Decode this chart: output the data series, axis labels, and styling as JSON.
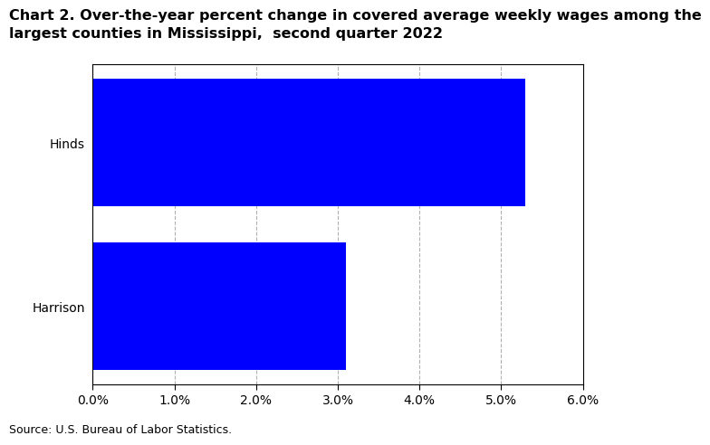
{
  "title_line1": "Chart 2. Over-the-year percent change in covered average weekly wages among the",
  "title_line2": "largest counties in Mississippi,  second quarter 2022",
  "categories": [
    "Harrison",
    "Hinds"
  ],
  "values": [
    3.1,
    5.3
  ],
  "bar_color": "#0000FF",
  "xlim": [
    0,
    0.06
  ],
  "xticks": [
    0.0,
    0.01,
    0.02,
    0.03,
    0.04,
    0.05,
    0.06
  ],
  "xtick_labels": [
    "0.0%",
    "1.0%",
    "2.0%",
    "3.0%",
    "4.0%",
    "5.0%",
    "6.0%"
  ],
  "source": "Source: U.S. Bureau of Labor Statistics.",
  "title_fontsize": 11.5,
  "tick_fontsize": 10,
  "source_fontsize": 9,
  "background_color": "#ffffff",
  "grid_color": "#b0b0b0"
}
